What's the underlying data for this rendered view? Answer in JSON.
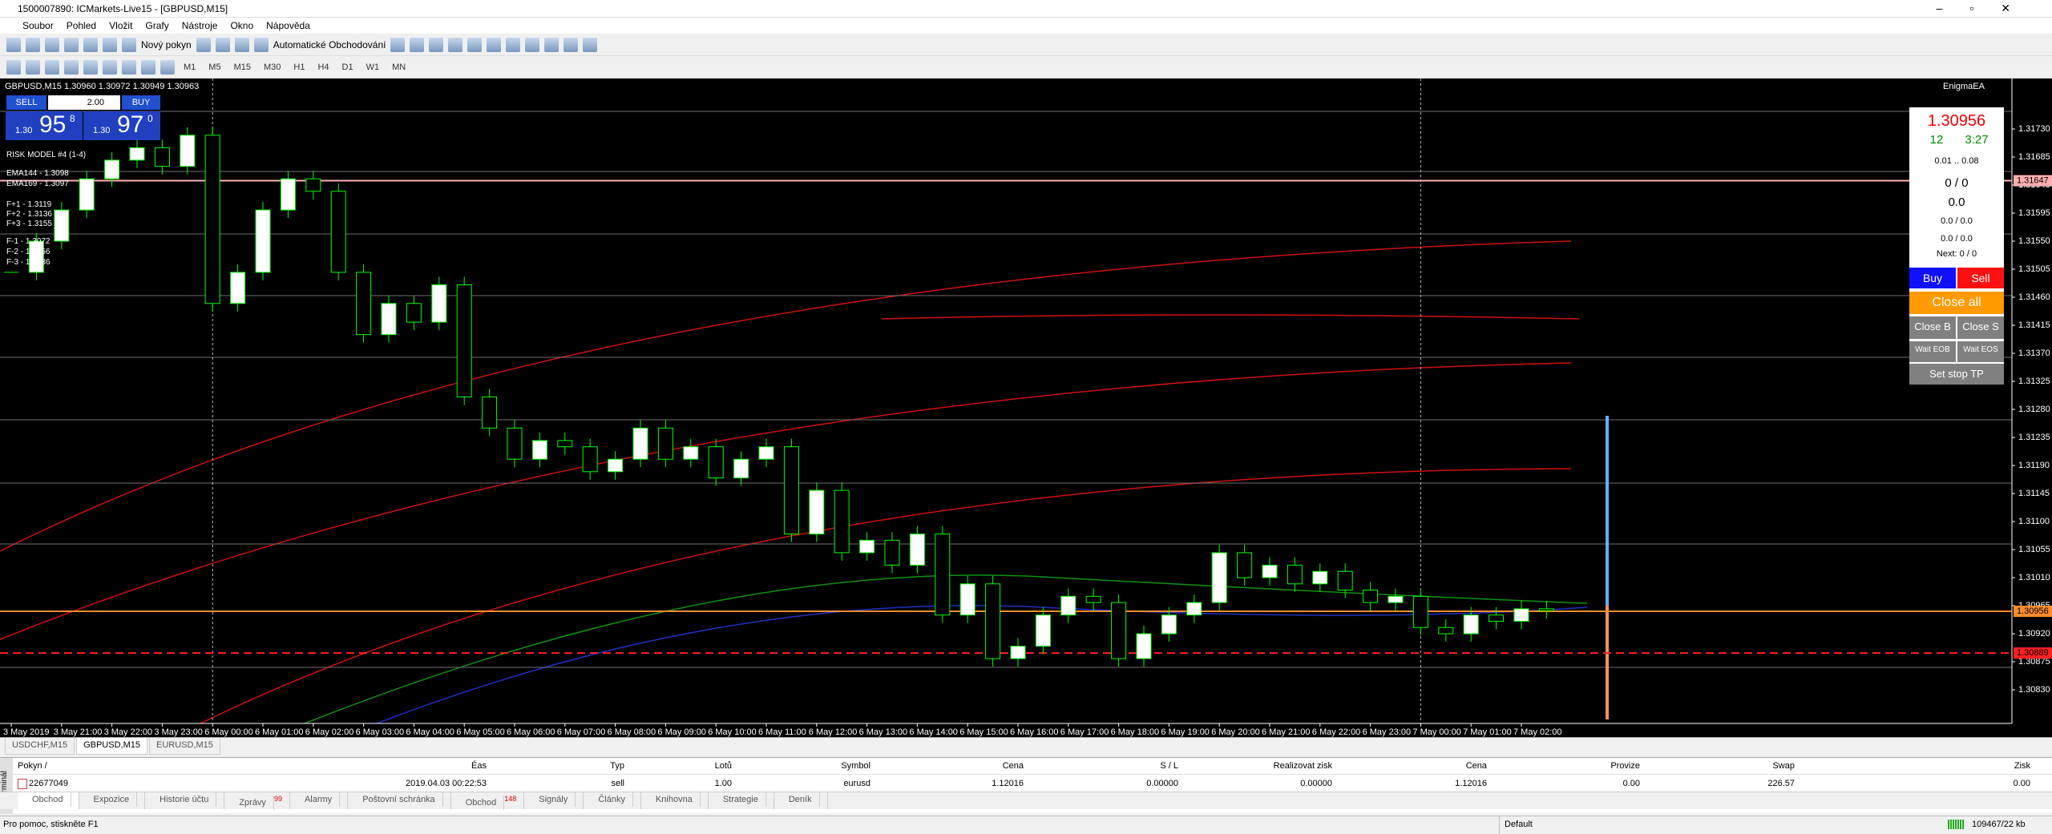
{
  "window": {
    "title": "1500007890: ICMarkets-Live15 - [GBPUSD,M15]"
  },
  "menu": [
    "Soubor",
    "Pohled",
    "Vložit",
    "Grafy",
    "Nástroje",
    "Okno",
    "Nápověda"
  ],
  "toolbar": {
    "new_order": "Nový pokyn",
    "auto_trading": "Automatické Obchodování",
    "timeframes": [
      "M1",
      "M5",
      "M15",
      "M30",
      "H1",
      "H4",
      "D1",
      "W1",
      "MN"
    ]
  },
  "chart_data": {
    "type": "candlestick",
    "title": "GBPUSD,M15  1.30960 1.30972 1.30949 1.30963",
    "categories": [
      "3 May 2019",
      null,
      "3 May 21:00",
      null,
      "3 May 22:00",
      null,
      "3 May 23:00",
      null,
      "6 May 00:00",
      null,
      "6 May 01:00",
      null,
      "6 May 02:00",
      null,
      "6 May 03:00",
      null,
      "6 May 04:00",
      null,
      "6 May 05:00",
      null,
      "6 May 06:00",
      null,
      "6 May 07:00",
      null,
      "6 May 08:00",
      null,
      "6 May 09:00",
      null,
      "6 May 10:00",
      null,
      "6 May 11:00",
      null,
      "6 May 12:00",
      null,
      "6 May 13:00",
      null,
      "6 May 14:00",
      null,
      "6 May 15:00",
      null,
      "6 May 16:00",
      null,
      "6 May 17:00",
      null,
      "6 May 18:00",
      null,
      "6 May 19:00",
      null,
      "6 May 20:00",
      null,
      "6 May 21:00",
      null,
      "6 May 22:00",
      null,
      "6 May 23:00",
      null,
      "7 May 00:00",
      null,
      "7 May 01:00",
      null,
      "7 May 02:00",
      null
    ],
    "closes": [
      1.315,
      1.3155,
      1.316,
      1.3165,
      1.3168,
      1.317,
      1.3167,
      1.3172,
      1.3145,
      1.315,
      1.316,
      1.3165,
      1.3163,
      1.315,
      1.314,
      1.3145,
      1.3142,
      1.3148,
      1.313,
      1.3125,
      1.312,
      1.3123,
      1.3122,
      1.3118,
      1.312,
      1.3125,
      1.312,
      1.3122,
      1.3117,
      1.312,
      1.3122,
      1.3108,
      1.3115,
      1.3105,
      1.3107,
      1.3103,
      1.3108,
      1.3095,
      1.31,
      1.3088,
      1.309,
      1.3095,
      1.3098,
      1.3097,
      1.3088,
      1.3092,
      1.3095,
      1.3097,
      1.3105,
      1.3101,
      1.3103,
      1.31,
      1.3102,
      1.3099,
      1.3097,
      1.3098,
      1.3093,
      1.3092,
      1.3095,
      1.3094,
      1.3096,
      1.30957
    ],
    "ylim": [
      1.30776,
      1.31811
    ],
    "yticks": [
      {
        "value": 1.3083,
        "label": "1.30830"
      },
      1.30875,
      {
        "value": 1.3092,
        "label": "1.30920"
      },
      1.30965,
      {
        "value": 1.3101,
        "label": "1.31010"
      },
      1.31055,
      {
        "value": 1.311,
        "label": "1.31100"
      },
      1.31145,
      {
        "value": 1.3119,
        "label": "1.31190"
      },
      1.31235,
      {
        "value": 1.3128,
        "label": "1.31280"
      },
      1.31325,
      {
        "value": 1.3137,
        "label": "1.31370"
      },
      1.31415,
      {
        "value": 1.3146,
        "label": "1.31460"
      },
      1.31505,
      {
        "value": 1.3155,
        "label": "1.31550"
      },
      1.31595,
      {
        "value": 1.3164,
        "label": "1.31640"
      },
      1.31685,
      {
        "value": 1.3173,
        "label": "1.31730"
      }
    ],
    "levels": [
      {
        "value": 1.31647,
        "color": "#ffb0b0"
      },
      {
        "value": 1.30889,
        "color": "#ff2020"
      },
      {
        "value": 1.30956,
        "color": "#ff8c30"
      }
    ],
    "colors": {
      "up": "#ffffff",
      "down": "#000000",
      "outline": "#00ff00"
    }
  },
  "trade_panel": {
    "sell": "SELL",
    "lots": "2.00",
    "buy": "BUY",
    "bid": {
      "prefix": "1.30",
      "big": "95",
      "small": "8"
    },
    "ask": {
      "prefix": "1.30",
      "big": "97",
      "small": "0"
    }
  },
  "indicators": [
    "RISK MODEL #4 (1-4)",
    "EMA144 - 1.3098",
    "EMA169 - 1.3097"
  ],
  "fib": [
    "F+1 - 1.3119",
    "F+2 - 1.3136",
    "F+3 - 1.3155",
    "F-1 - 1.3072",
    "F-2 - 1.3056",
    "F-3 - 1.3036"
  ],
  "ea_panel": {
    "name": "EnigmaEA",
    "price": "1.30956",
    "count": "12",
    "timer": "3:27",
    "range": "0.01 .. 0.08",
    "positions": "0 / 0",
    "profit": "0.0",
    "pl_buy": "0.0 / 0.0",
    "pl_sell": "0.0 / 0.0",
    "next": "Next: 0 / 0",
    "buy": "Buy",
    "sell": "Sell",
    "close_all": "Close all",
    "close_b": "Close B",
    "close_s": "Close S",
    "wait_eob": "Wait EOB",
    "wait_eos": "Wait EOS",
    "set_stop": "Set stop TP"
  },
  "chart_tabs": [
    "USDCHF,M15",
    "GBPUSD,M15",
    "EURUSD,M15"
  ],
  "terminal": {
    "label": "Terminál",
    "columns": [
      "Pokyn /",
      "Éas",
      "Typ",
      "Lotů",
      "Symbol",
      "Cena",
      "S / L",
      "Realizovat zisk",
      "Cena",
      "Provize",
      "Swap",
      "Zisk"
    ],
    "rows": [
      [
        "22677049",
        "2019.04.03 00:22:53",
        "sell",
        "1.00",
        "eurusd",
        "1.12016",
        "0.00000",
        "0.00000",
        "1.12016",
        "0.00",
        "226.57",
        "0.00"
      ]
    ],
    "tabs": [
      {
        "label": "Obchod"
      },
      {
        "label": "Expozice"
      },
      {
        "label": "Historie účtu"
      },
      {
        "label": "Zprávy",
        "badge": "99"
      },
      {
        "label": "Alarmy"
      },
      {
        "label": "Poštovní schránka"
      },
      {
        "label": "Obchod",
        "badge": "148"
      },
      {
        "label": "Signály"
      },
      {
        "label": "Články"
      },
      {
        "label": "Knihovna"
      },
      {
        "label": "Strategie"
      },
      {
        "label": "Deník"
      }
    ]
  },
  "status": {
    "help": "Pro pomoc, stiskněte F1",
    "profile": "Default",
    "traffic": "109467/22 kb"
  }
}
